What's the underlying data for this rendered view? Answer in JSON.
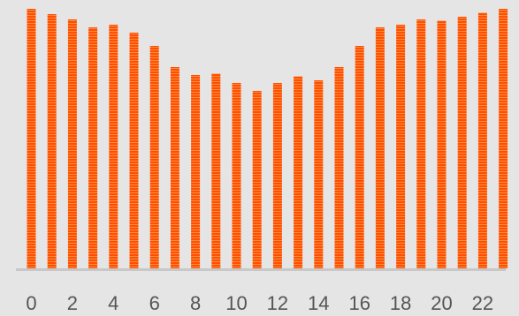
{
  "chart_data": {
    "type": "bar",
    "categories": [
      "0",
      "1",
      "2",
      "3",
      "4",
      "5",
      "6",
      "7",
      "8",
      "9",
      "10",
      "11",
      "12",
      "13",
      "14",
      "15",
      "16",
      "17",
      "18",
      "19",
      "20",
      "21",
      "22",
      "23"
    ],
    "x_tick_labels": [
      "0",
      "2",
      "4",
      "6",
      "8",
      "10",
      "12",
      "14",
      "16",
      "18",
      "20",
      "22"
    ],
    "values": [
      98,
      96,
      94,
      91,
      92,
      89,
      84,
      76,
      73,
      73.5,
      70,
      67,
      70,
      72.5,
      71,
      76,
      84,
      91,
      92,
      94,
      93.5,
      95,
      96.5,
      98
    ],
    "ylim": [
      0,
      100
    ],
    "grid": false,
    "legend": "none",
    "colors": {
      "bar": "#ff4f00",
      "bar_stripe": "#ff8a40",
      "axis": "#c8c8c8",
      "tick_text": "#555555",
      "background": "#e5e5e5"
    }
  }
}
